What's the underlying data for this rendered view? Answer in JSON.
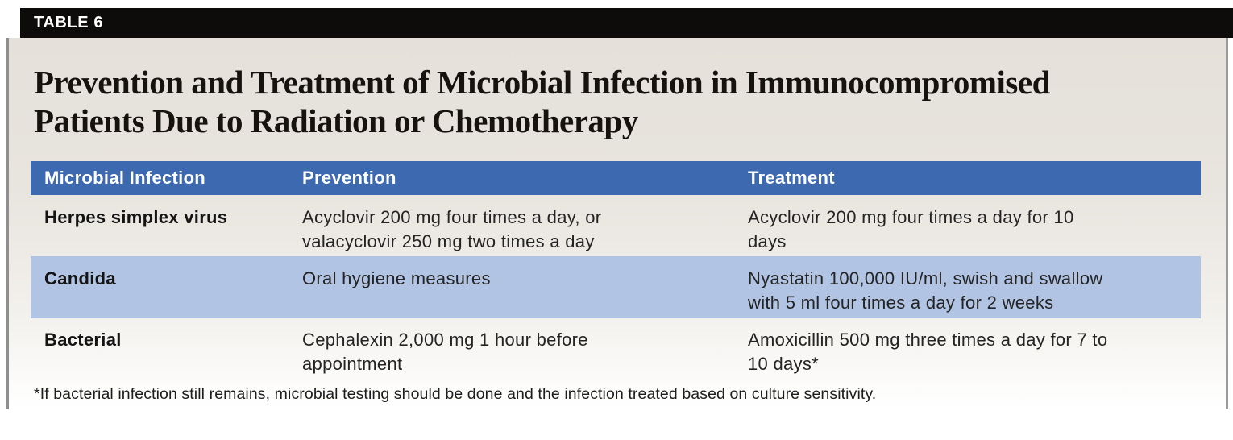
{
  "page": {
    "table_label": "TABLE 6",
    "title": "Prevention and Treatment of Microbial Infection in Immunocompromised\nPatients Due to Radiation or Chemotherapy",
    "footnote": "*If bacterial infection still remains, microbial testing should be done and the infection treated based on culture sensitivity."
  },
  "table": {
    "columns": [
      "Microbial Infection",
      "Prevention",
      "Treatment"
    ],
    "rows": [
      {
        "infection": "Herpes simplex virus",
        "prevention": "Acyclovir 200 mg four times a day, or\nvalacyclovir 250 mg two times a day",
        "treatment": "Acyclovir 200 mg four times a day for 10\ndays",
        "highlighted": false
      },
      {
        "infection": "Candida",
        "prevention": "Oral hygiene measures",
        "treatment": "Nyastatin 100,000 IU/ml, swish and swallow\nwith 5 ml four times a day for 2 weeks",
        "highlighted": true
      },
      {
        "infection": "Bacterial",
        "prevention": "Cephalexin 2,000 mg 1 hour before\nappointment",
        "treatment": "Amoxicillin 500 mg three times a day for 7 to\n10 days*",
        "highlighted": false
      }
    ]
  },
  "colors": {
    "table_number_bar_bg": "#0d0c0a",
    "header_row_bg": "#3c69b0",
    "highlight_row_bg": "#b1c4e4",
    "panel_bg_top": "#e5e1da",
    "panel_bg_bottom": "#ffffff",
    "side_rule": "#8f8f8f",
    "header_text": "#ffffff",
    "body_text": "#242424"
  }
}
